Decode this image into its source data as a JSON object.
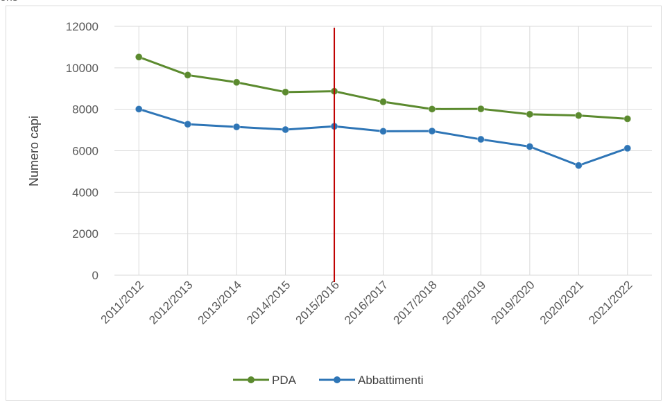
{
  "top_fragment": "ons",
  "chart_data": {
    "type": "line",
    "title": "",
    "xlabel": "",
    "ylabel": "Numero capi",
    "categories": [
      "2011/2012",
      "2012/2013",
      "2013/2014",
      "2014/2015",
      "2015/2016",
      "2016/2017",
      "2017/2018",
      "2018/2019",
      "2019/2020",
      "2020/2021",
      "2021/2022"
    ],
    "yticks": [
      "0",
      "2000",
      "4000",
      "6000",
      "8000",
      "10000",
      "12000"
    ],
    "ylim": [
      0,
      12000
    ],
    "grid": true,
    "legend_position": "bottom",
    "marker_line_category": "2015/2016",
    "marker_line_color": "#c00000",
    "series": [
      {
        "name": "PDA",
        "color": "#5b8a2e",
        "values": [
          10520,
          9650,
          9300,
          8830,
          8870,
          8360,
          8010,
          8020,
          7760,
          7700,
          7540
        ]
      },
      {
        "name": "Abbattimenti",
        "color": "#2e75b6",
        "values": [
          8010,
          7280,
          7150,
          7020,
          7180,
          6940,
          6950,
          6550,
          6200,
          5290,
          6120
        ]
      }
    ]
  }
}
